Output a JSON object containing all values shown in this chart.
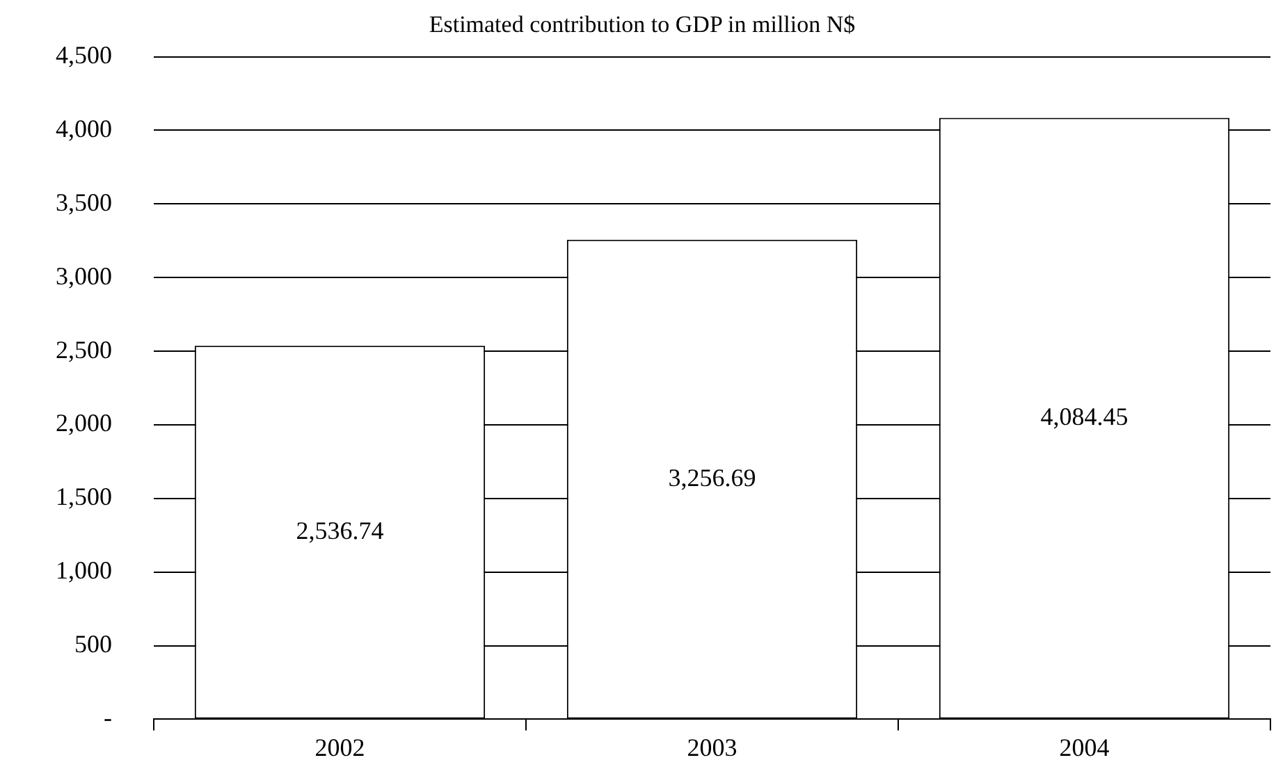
{
  "chart_data": {
    "type": "bar",
    "title": "Estimated contribution to GDP in million N$",
    "categories": [
      "2002",
      "2003",
      "2004"
    ],
    "values": [
      2536.74,
      3256.69,
      4084.45
    ],
    "value_labels": [
      "2,536.74",
      "3,256.69",
      "4,084.45"
    ],
    "color": "#ffffff",
    "ylim": [
      0,
      4500
    ],
    "yticks": [
      {
        "value": 0,
        "label": "-"
      },
      {
        "value": 500,
        "label": "500"
      },
      {
        "value": 1000,
        "label": "1,000"
      },
      {
        "value": 1500,
        "label": "1,500"
      },
      {
        "value": 2000,
        "label": "2,000"
      },
      {
        "value": 2500,
        "label": "2,500"
      },
      {
        "value": 3000,
        "label": "3,000"
      },
      {
        "value": 3500,
        "label": "3,500"
      },
      {
        "value": 4000,
        "label": "4,000"
      },
      {
        "value": 4500,
        "label": "4,500"
      }
    ],
    "grid": "y",
    "legend": false
  }
}
